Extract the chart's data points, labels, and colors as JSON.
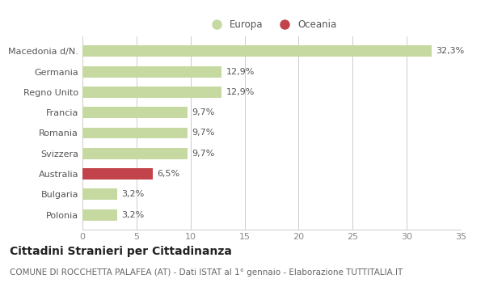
{
  "categories": [
    "Macedonia d/N.",
    "Germania",
    "Regno Unito",
    "Francia",
    "Romania",
    "Svizzera",
    "Australia",
    "Bulgaria",
    "Polonia"
  ],
  "values": [
    32.3,
    12.9,
    12.9,
    9.7,
    9.7,
    9.7,
    6.5,
    3.2,
    3.2
  ],
  "labels": [
    "32,3%",
    "12,9%",
    "12,9%",
    "9,7%",
    "9,7%",
    "9,7%",
    "6,5%",
    "3,2%",
    "3,2%"
  ],
  "colors": [
    "#c5d9a0",
    "#c5d9a0",
    "#c5d9a0",
    "#c5d9a0",
    "#c5d9a0",
    "#c5d9a0",
    "#c2444a",
    "#c5d9a0",
    "#c5d9a0"
  ],
  "legend": [
    {
      "label": "Europa",
      "color": "#c5d9a0"
    },
    {
      "label": "Oceania",
      "color": "#c2444a"
    }
  ],
  "xlim": [
    0,
    35
  ],
  "xticks": [
    0,
    5,
    10,
    15,
    20,
    25,
    30,
    35
  ],
  "title": "Cittadini Stranieri per Cittadinanza",
  "subtitle": "COMUNE DI ROCCHETTA PALAFEA (AT) - Dati ISTAT al 1° gennaio - Elaborazione TUTTITALIA.IT",
  "background_color": "#ffffff",
  "grid_color": "#cccccc",
  "bar_height": 0.55,
  "label_fontsize": 8,
  "tick_fontsize": 8,
  "title_fontsize": 10,
  "subtitle_fontsize": 7.5
}
